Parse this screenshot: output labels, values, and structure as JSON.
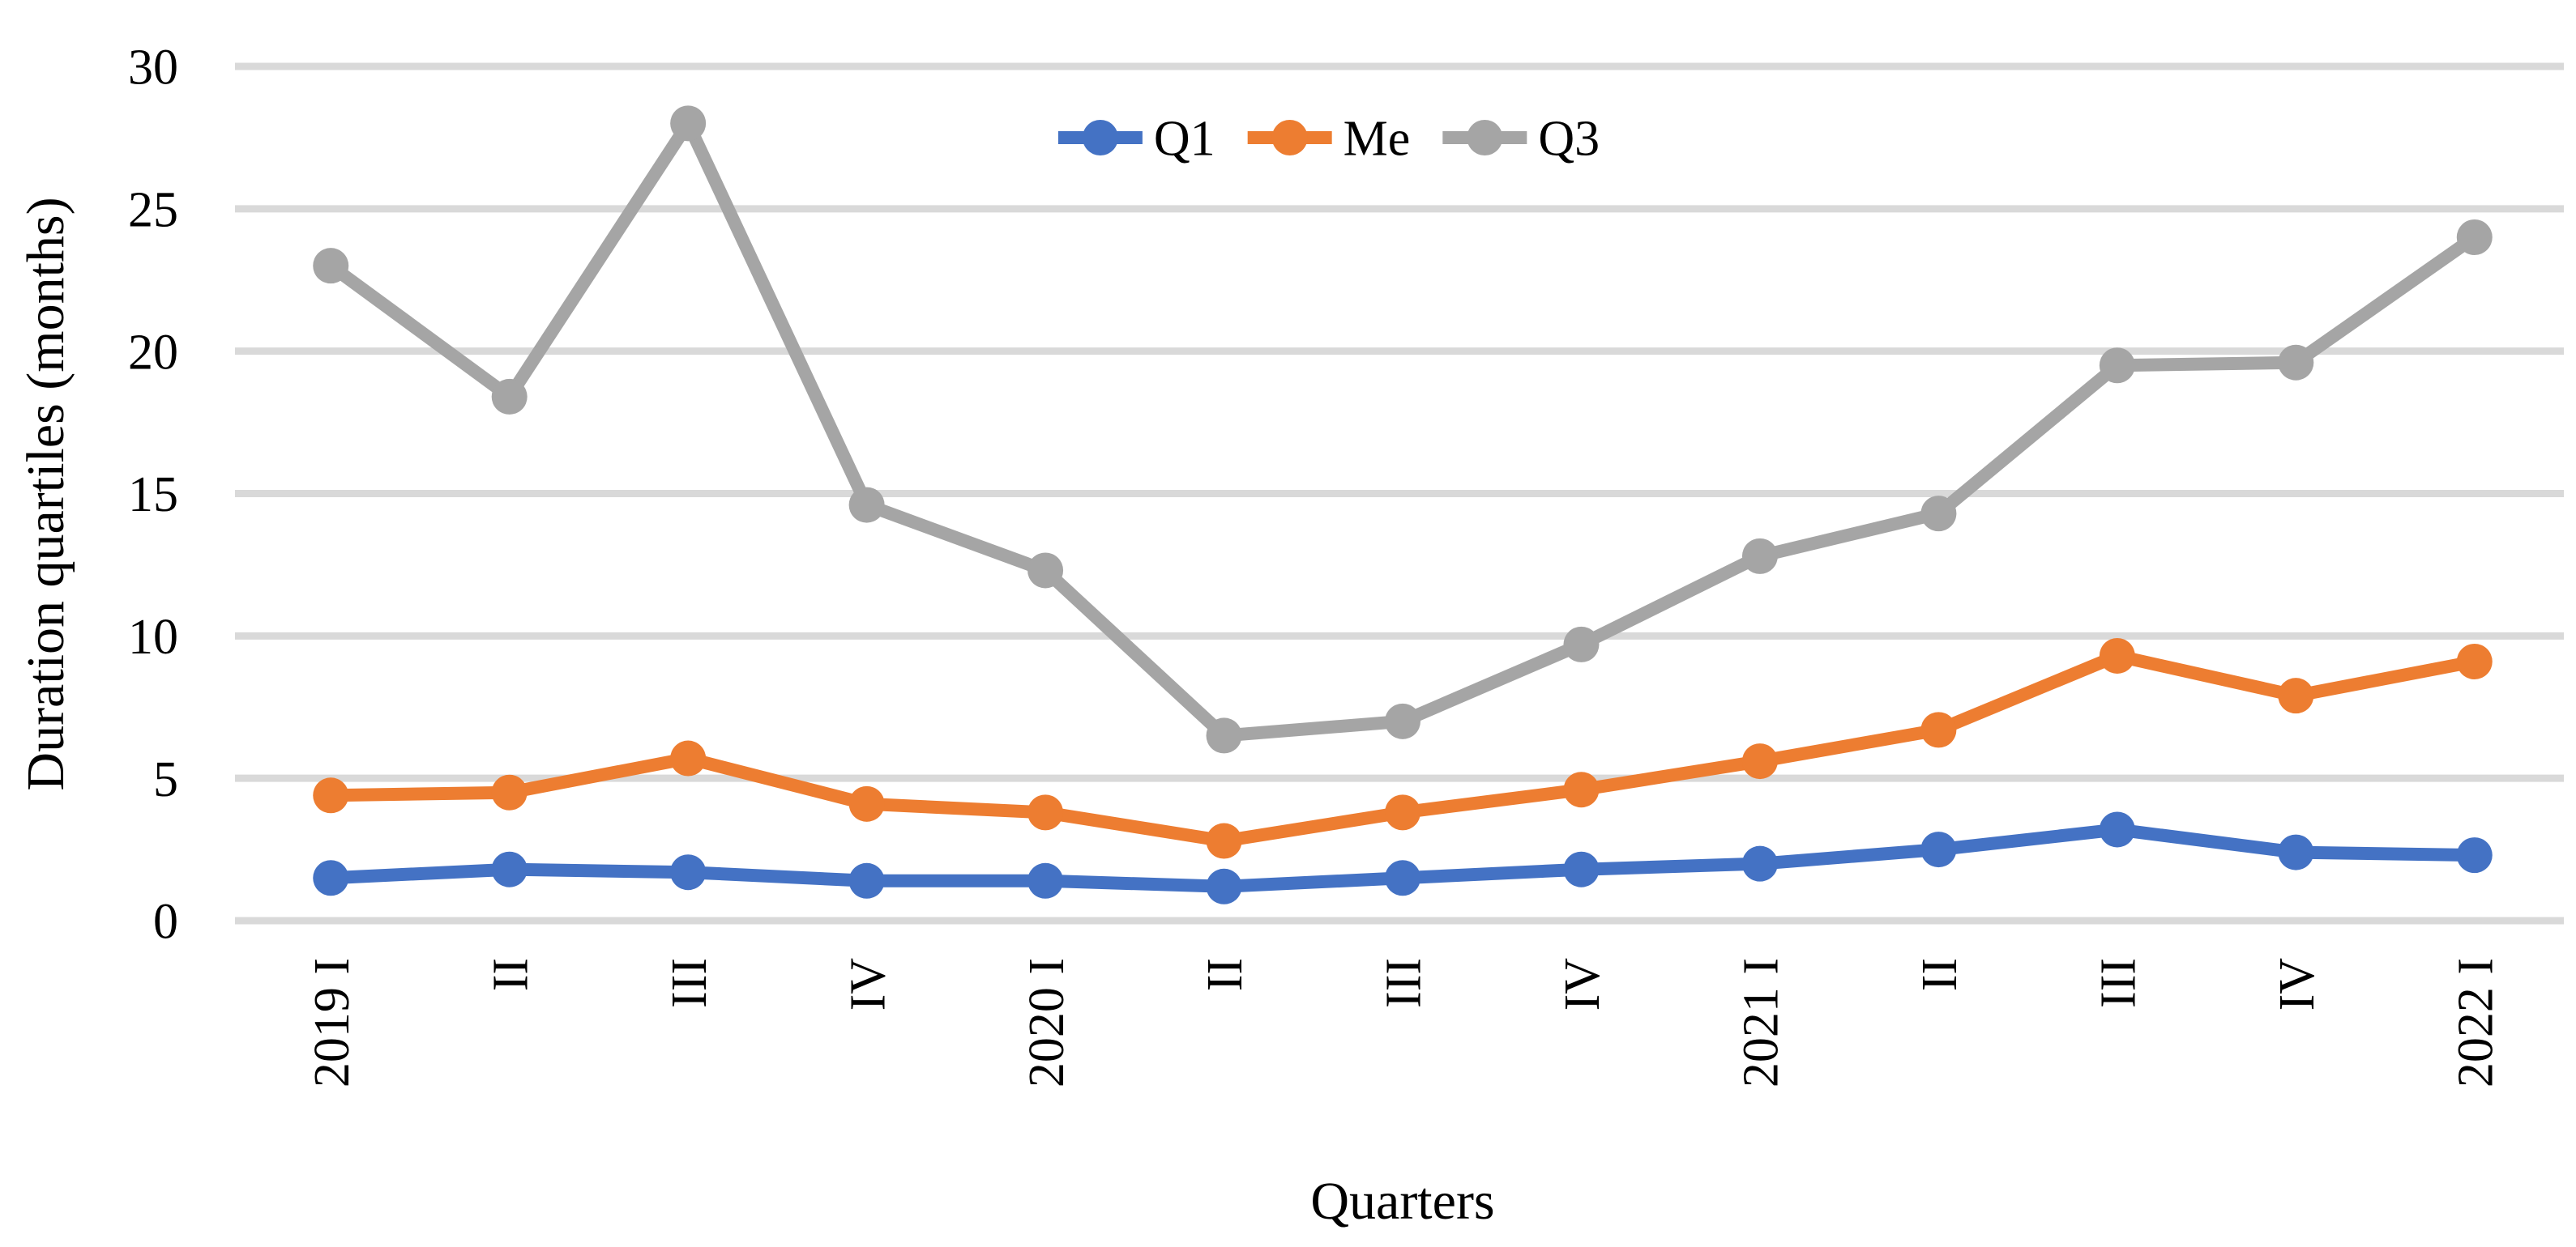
{
  "chart_data": {
    "type": "line",
    "title": "",
    "xlabel": "Quarters",
    "ylabel": "Duration quartiles (months)",
    "categories": [
      "2019 I",
      "II",
      "III",
      "IV",
      "2020 I",
      "II",
      "III",
      "IV",
      "2021 I",
      "II",
      "III",
      "IV",
      "2022 I"
    ],
    "series": [
      {
        "name": "Q1",
        "color": "#4472C4",
        "values": [
          1.5,
          1.8,
          1.7,
          1.4,
          1.4,
          1.2,
          1.5,
          1.8,
          2.0,
          2.5,
          3.2,
          2.4,
          2.3
        ]
      },
      {
        "name": "Me",
        "color": "#ED7D31",
        "values": [
          4.4,
          4.5,
          5.7,
          4.1,
          3.8,
          2.8,
          3.8,
          4.6,
          5.6,
          6.7,
          9.3,
          7.9,
          9.1
        ]
      },
      {
        "name": "Q3",
        "color": "#A5A5A5",
        "values": [
          23.0,
          18.4,
          28.0,
          14.6,
          12.3,
          6.5,
          7.0,
          9.7,
          12.8,
          14.3,
          19.5,
          19.6,
          24.0
        ]
      }
    ],
    "ylim": [
      0,
      30
    ],
    "yticks": [
      0,
      5,
      10,
      15,
      20,
      25,
      30
    ],
    "grid": true,
    "gridline_color": "#D9D9D9",
    "text_color": "#000000",
    "legend_position": "top-center",
    "marker": "circle"
  }
}
